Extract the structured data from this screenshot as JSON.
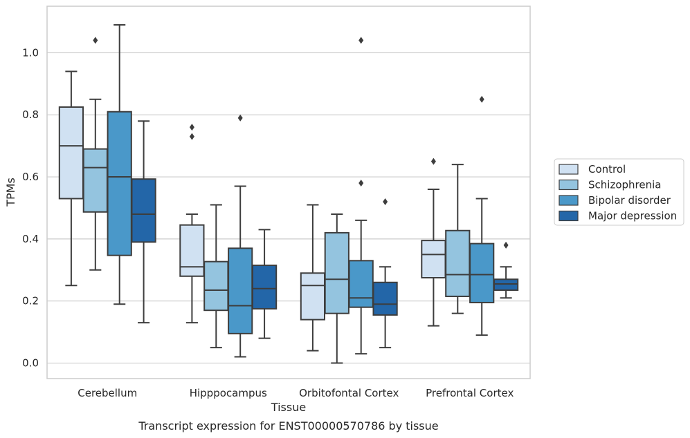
{
  "chart_data": {
    "type": "box",
    "xlabel": "Tissue",
    "ylabel": "TPMs",
    "caption": "Transcript expression for ENST00000570786 by tissue",
    "ylim": [
      -0.05,
      1.15
    ],
    "yticks": [
      "0.0",
      "0.2",
      "0.4",
      "0.6",
      "0.8",
      "1.0"
    ],
    "grid": "horizontal",
    "legend_position": "right",
    "categories": [
      "Cerebellum",
      "Hipppocampus",
      "Orbitofontal Cortex",
      "Prefrontal Cortex"
    ],
    "series": [
      {
        "name": "Control",
        "color": "#d0e1f2",
        "boxes": [
          {
            "whislo": 0.25,
            "q1": 0.53,
            "med": 0.7,
            "q3": 0.825,
            "whishi": 0.94,
            "fliers": []
          },
          {
            "whislo": 0.13,
            "q1": 0.28,
            "med": 0.31,
            "q3": 0.445,
            "whishi": 0.48,
            "fliers": [
              0.73,
              0.76
            ]
          },
          {
            "whislo": 0.04,
            "q1": 0.14,
            "med": 0.25,
            "q3": 0.29,
            "whishi": 0.51,
            "fliers": []
          },
          {
            "whislo": 0.12,
            "q1": 0.275,
            "med": 0.35,
            "q3": 0.395,
            "whishi": 0.56,
            "fliers": [
              0.65
            ]
          }
        ]
      },
      {
        "name": "Schizophrenia",
        "color": "#94c4df",
        "boxes": [
          {
            "whislo": 0.3,
            "q1": 0.487,
            "med": 0.63,
            "q3": 0.69,
            "whishi": 0.85,
            "fliers": [
              1.04
            ]
          },
          {
            "whislo": 0.05,
            "q1": 0.17,
            "med": 0.235,
            "q3": 0.327,
            "whishi": 0.51,
            "fliers": []
          },
          {
            "whislo": 0.0,
            "q1": 0.16,
            "med": 0.27,
            "q3": 0.42,
            "whishi": 0.48,
            "fliers": []
          },
          {
            "whislo": 0.16,
            "q1": 0.215,
            "med": 0.285,
            "q3": 0.427,
            "whishi": 0.64,
            "fliers": []
          }
        ]
      },
      {
        "name": "Bipolar disorder",
        "color": "#4a98c9",
        "boxes": [
          {
            "whislo": 0.19,
            "q1": 0.347,
            "med": 0.6,
            "q3": 0.81,
            "whishi": 1.09,
            "fliers": []
          },
          {
            "whislo": 0.02,
            "q1": 0.095,
            "med": 0.185,
            "q3": 0.37,
            "whishi": 0.57,
            "fliers": [
              0.79
            ]
          },
          {
            "whislo": 0.03,
            "q1": 0.18,
            "med": 0.21,
            "q3": 0.33,
            "whishi": 0.46,
            "fliers": [
              0.58,
              1.04
            ]
          },
          {
            "whislo": 0.09,
            "q1": 0.195,
            "med": 0.285,
            "q3": 0.385,
            "whishi": 0.53,
            "fliers": [
              0.85
            ]
          }
        ]
      },
      {
        "name": "Major depression",
        "color": "#2366a8",
        "boxes": [
          {
            "whislo": 0.13,
            "q1": 0.39,
            "med": 0.48,
            "q3": 0.593,
            "whishi": 0.78,
            "fliers": []
          },
          {
            "whislo": 0.08,
            "q1": 0.175,
            "med": 0.24,
            "q3": 0.315,
            "whishi": 0.43,
            "fliers": []
          },
          {
            "whislo": 0.05,
            "q1": 0.155,
            "med": 0.19,
            "q3": 0.26,
            "whishi": 0.31,
            "fliers": [
              0.52
            ]
          },
          {
            "whislo": 0.21,
            "q1": 0.235,
            "med": 0.255,
            "q3": 0.27,
            "whishi": 0.31,
            "fliers": [
              0.38
            ]
          }
        ]
      }
    ]
  }
}
